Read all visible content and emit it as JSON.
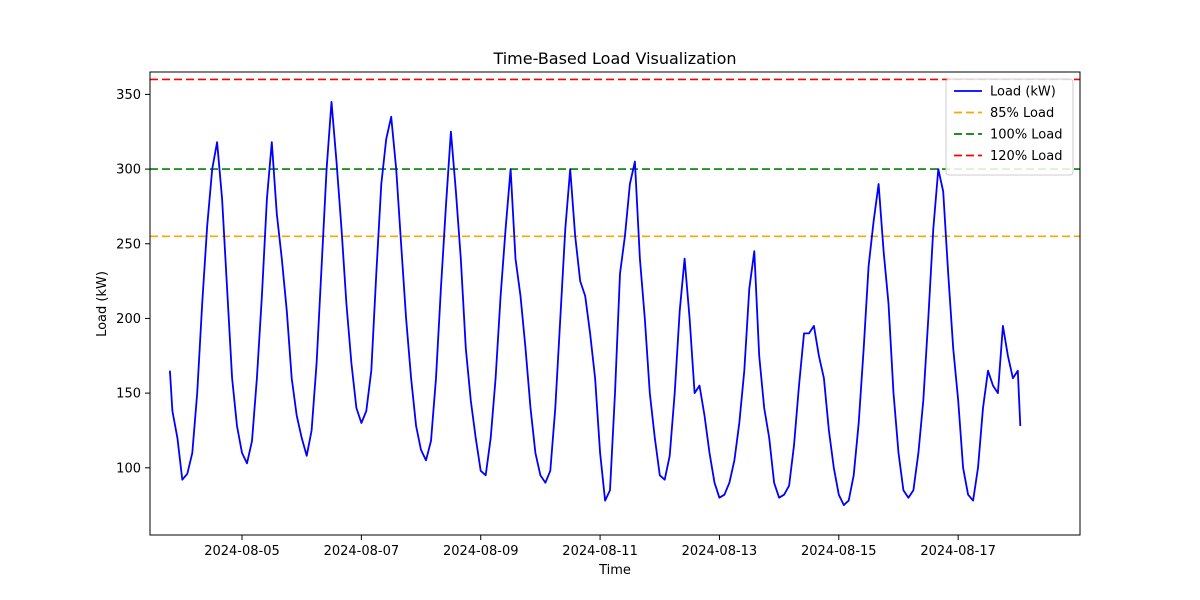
{
  "chart_data": {
    "type": "line",
    "title": "Time-Based Load Visualization",
    "xlabel": "Time",
    "ylabel": "Load (kW)",
    "xlim": [
      "2024-08-03T11:00",
      "2024-08-19T01:00"
    ],
    "ylim": [
      55,
      365
    ],
    "x_ticks": [
      "2024-08-05",
      "2024-08-07",
      "2024-08-09",
      "2024-08-11",
      "2024-08-13",
      "2024-08-15",
      "2024-08-17"
    ],
    "y_ticks": [
      100,
      150,
      200,
      250,
      300,
      350
    ],
    "grid": false,
    "legend_position": "top-right",
    "series": [
      {
        "name": "Load (kW)",
        "color": "#0000ff",
        "style": "solid",
        "points": [
          [
            "2024-08-03T19:00",
            165
          ],
          [
            "2024-08-03T20:00",
            138
          ],
          [
            "2024-08-03T22:00",
            120
          ],
          [
            "2024-08-04T00:00",
            92
          ],
          [
            "2024-08-04T02:00",
            96
          ],
          [
            "2024-08-04T04:00",
            110
          ],
          [
            "2024-08-04T06:00",
            150
          ],
          [
            "2024-08-04T08:00",
            210
          ],
          [
            "2024-08-04T10:00",
            262
          ],
          [
            "2024-08-04T12:00",
            300
          ],
          [
            "2024-08-04T14:00",
            318
          ],
          [
            "2024-08-04T16:00",
            280
          ],
          [
            "2024-08-04T18:00",
            220
          ],
          [
            "2024-08-04T20:00",
            160
          ],
          [
            "2024-08-04T22:00",
            128
          ],
          [
            "2024-08-05T00:00",
            110
          ],
          [
            "2024-08-05T02:00",
            103
          ],
          [
            "2024-08-05T04:00",
            118
          ],
          [
            "2024-08-05T06:00",
            160
          ],
          [
            "2024-08-05T08:00",
            215
          ],
          [
            "2024-08-05T10:00",
            280
          ],
          [
            "2024-08-05T12:00",
            318
          ],
          [
            "2024-08-05T14:00",
            270
          ],
          [
            "2024-08-05T16:00",
            240
          ],
          [
            "2024-08-05T18:00",
            205
          ],
          [
            "2024-08-05T20:00",
            160
          ],
          [
            "2024-08-05T22:00",
            135
          ],
          [
            "2024-08-06T00:00",
            120
          ],
          [
            "2024-08-06T02:00",
            108
          ],
          [
            "2024-08-06T04:00",
            125
          ],
          [
            "2024-08-06T06:00",
            170
          ],
          [
            "2024-08-06T08:00",
            235
          ],
          [
            "2024-08-06T10:00",
            300
          ],
          [
            "2024-08-06T12:00",
            345
          ],
          [
            "2024-08-06T14:00",
            305
          ],
          [
            "2024-08-06T16:00",
            260
          ],
          [
            "2024-08-06T18:00",
            210
          ],
          [
            "2024-08-06T20:00",
            170
          ],
          [
            "2024-08-06T22:00",
            140
          ],
          [
            "2024-08-07T00:00",
            130
          ],
          [
            "2024-08-07T02:00",
            138
          ],
          [
            "2024-08-07T04:00",
            165
          ],
          [
            "2024-08-07T06:00",
            230
          ],
          [
            "2024-08-07T08:00",
            290
          ],
          [
            "2024-08-07T10:00",
            320
          ],
          [
            "2024-08-07T12:00",
            335
          ],
          [
            "2024-08-07T14:00",
            300
          ],
          [
            "2024-08-07T16:00",
            250
          ],
          [
            "2024-08-07T18:00",
            200
          ],
          [
            "2024-08-07T20:00",
            160
          ],
          [
            "2024-08-07T22:00",
            128
          ],
          [
            "2024-08-08T00:00",
            112
          ],
          [
            "2024-08-08T02:00",
            105
          ],
          [
            "2024-08-08T04:00",
            118
          ],
          [
            "2024-08-08T06:00",
            160
          ],
          [
            "2024-08-08T08:00",
            220
          ],
          [
            "2024-08-08T10:00",
            275
          ],
          [
            "2024-08-08T12:00",
            325
          ],
          [
            "2024-08-08T14:00",
            285
          ],
          [
            "2024-08-08T16:00",
            240
          ],
          [
            "2024-08-08T18:00",
            180
          ],
          [
            "2024-08-08T20:00",
            145
          ],
          [
            "2024-08-08T22:00",
            120
          ],
          [
            "2024-08-09T00:00",
            98
          ],
          [
            "2024-08-09T02:00",
            95
          ],
          [
            "2024-08-09T04:00",
            120
          ],
          [
            "2024-08-09T06:00",
            160
          ],
          [
            "2024-08-09T08:00",
            215
          ],
          [
            "2024-08-09T10:00",
            260
          ],
          [
            "2024-08-09T12:00",
            300
          ],
          [
            "2024-08-09T14:00",
            240
          ],
          [
            "2024-08-09T16:00",
            215
          ],
          [
            "2024-08-09T18:00",
            180
          ],
          [
            "2024-08-09T20:00",
            140
          ],
          [
            "2024-08-09T22:00",
            110
          ],
          [
            "2024-08-10T00:00",
            95
          ],
          [
            "2024-08-10T02:00",
            90
          ],
          [
            "2024-08-10T04:00",
            98
          ],
          [
            "2024-08-10T06:00",
            140
          ],
          [
            "2024-08-10T08:00",
            200
          ],
          [
            "2024-08-10T10:00",
            260
          ],
          [
            "2024-08-10T12:00",
            300
          ],
          [
            "2024-08-10T14:00",
            255
          ],
          [
            "2024-08-10T16:00",
            225
          ],
          [
            "2024-08-10T18:00",
            215
          ],
          [
            "2024-08-10T20:00",
            190
          ],
          [
            "2024-08-10T22:00",
            160
          ],
          [
            "2024-08-11T00:00",
            110
          ],
          [
            "2024-08-11T02:00",
            78
          ],
          [
            "2024-08-11T04:00",
            85
          ],
          [
            "2024-08-11T06:00",
            150
          ],
          [
            "2024-08-11T08:00",
            230
          ],
          [
            "2024-08-11T10:00",
            255
          ],
          [
            "2024-08-11T12:00",
            290
          ],
          [
            "2024-08-11T14:00",
            305
          ],
          [
            "2024-08-11T16:00",
            240
          ],
          [
            "2024-08-11T18:00",
            200
          ],
          [
            "2024-08-11T20:00",
            150
          ],
          [
            "2024-08-11T22:00",
            120
          ],
          [
            "2024-08-12T00:00",
            95
          ],
          [
            "2024-08-12T02:00",
            92
          ],
          [
            "2024-08-12T04:00",
            108
          ],
          [
            "2024-08-12T06:00",
            150
          ],
          [
            "2024-08-12T08:00",
            205
          ],
          [
            "2024-08-12T10:00",
            240
          ],
          [
            "2024-08-12T12:00",
            200
          ],
          [
            "2024-08-12T14:00",
            150
          ],
          [
            "2024-08-12T16:00",
            155
          ],
          [
            "2024-08-12T18:00",
            135
          ],
          [
            "2024-08-12T20:00",
            110
          ],
          [
            "2024-08-12T22:00",
            90
          ],
          [
            "2024-08-13T00:00",
            80
          ],
          [
            "2024-08-13T02:00",
            82
          ],
          [
            "2024-08-13T04:00",
            90
          ],
          [
            "2024-08-13T06:00",
            105
          ],
          [
            "2024-08-13T08:00",
            130
          ],
          [
            "2024-08-13T10:00",
            165
          ],
          [
            "2024-08-13T12:00",
            220
          ],
          [
            "2024-08-13T14:00",
            245
          ],
          [
            "2024-08-13T16:00",
            175
          ],
          [
            "2024-08-13T18:00",
            140
          ],
          [
            "2024-08-13T20:00",
            120
          ],
          [
            "2024-08-13T22:00",
            90
          ],
          [
            "2024-08-14T00:00",
            80
          ],
          [
            "2024-08-14T02:00",
            82
          ],
          [
            "2024-08-14T04:00",
            88
          ],
          [
            "2024-08-14T06:00",
            115
          ],
          [
            "2024-08-14T08:00",
            155
          ],
          [
            "2024-08-14T10:00",
            190
          ],
          [
            "2024-08-14T12:00",
            190
          ],
          [
            "2024-08-14T14:00",
            195
          ],
          [
            "2024-08-14T16:00",
            175
          ],
          [
            "2024-08-14T18:00",
            160
          ],
          [
            "2024-08-14T20:00",
            125
          ],
          [
            "2024-08-14T22:00",
            100
          ],
          [
            "2024-08-15T00:00",
            82
          ],
          [
            "2024-08-15T02:00",
            75
          ],
          [
            "2024-08-15T04:00",
            78
          ],
          [
            "2024-08-15T06:00",
            95
          ],
          [
            "2024-08-15T08:00",
            130
          ],
          [
            "2024-08-15T10:00",
            180
          ],
          [
            "2024-08-15T12:00",
            235
          ],
          [
            "2024-08-15T14:00",
            265
          ],
          [
            "2024-08-15T16:00",
            290
          ],
          [
            "2024-08-15T18:00",
            245
          ],
          [
            "2024-08-15T20:00",
            210
          ],
          [
            "2024-08-15T22:00",
            150
          ],
          [
            "2024-08-16T00:00",
            110
          ],
          [
            "2024-08-16T02:00",
            85
          ],
          [
            "2024-08-16T04:00",
            80
          ],
          [
            "2024-08-16T06:00",
            85
          ],
          [
            "2024-08-16T08:00",
            110
          ],
          [
            "2024-08-16T10:00",
            145
          ],
          [
            "2024-08-16T12:00",
            200
          ],
          [
            "2024-08-16T14:00",
            260
          ],
          [
            "2024-08-16T16:00",
            300
          ],
          [
            "2024-08-16T18:00",
            285
          ],
          [
            "2024-08-16T20:00",
            230
          ],
          [
            "2024-08-16T22:00",
            180
          ],
          [
            "2024-08-17T00:00",
            145
          ],
          [
            "2024-08-17T02:00",
            100
          ],
          [
            "2024-08-17T04:00",
            82
          ],
          [
            "2024-08-17T06:00",
            78
          ],
          [
            "2024-08-17T08:00",
            100
          ],
          [
            "2024-08-17T10:00",
            140
          ],
          [
            "2024-08-17T12:00",
            165
          ],
          [
            "2024-08-17T14:00",
            155
          ],
          [
            "2024-08-17T16:00",
            150
          ],
          [
            "2024-08-17T18:00",
            195
          ],
          [
            "2024-08-17T20:00",
            175
          ],
          [
            "2024-08-17T22:00",
            160
          ],
          [
            "2024-08-18T00:00",
            165
          ],
          [
            "2024-08-18T01:00",
            128
          ]
        ]
      },
      {
        "name": "85% Load",
        "color": "#ffa500",
        "style": "dashed",
        "value": 255
      },
      {
        "name": "100% Load",
        "color": "#008000",
        "style": "dashed",
        "value": 300
      },
      {
        "name": "120% Load",
        "color": "#ff0000",
        "style": "dashed",
        "value": 360
      }
    ]
  }
}
